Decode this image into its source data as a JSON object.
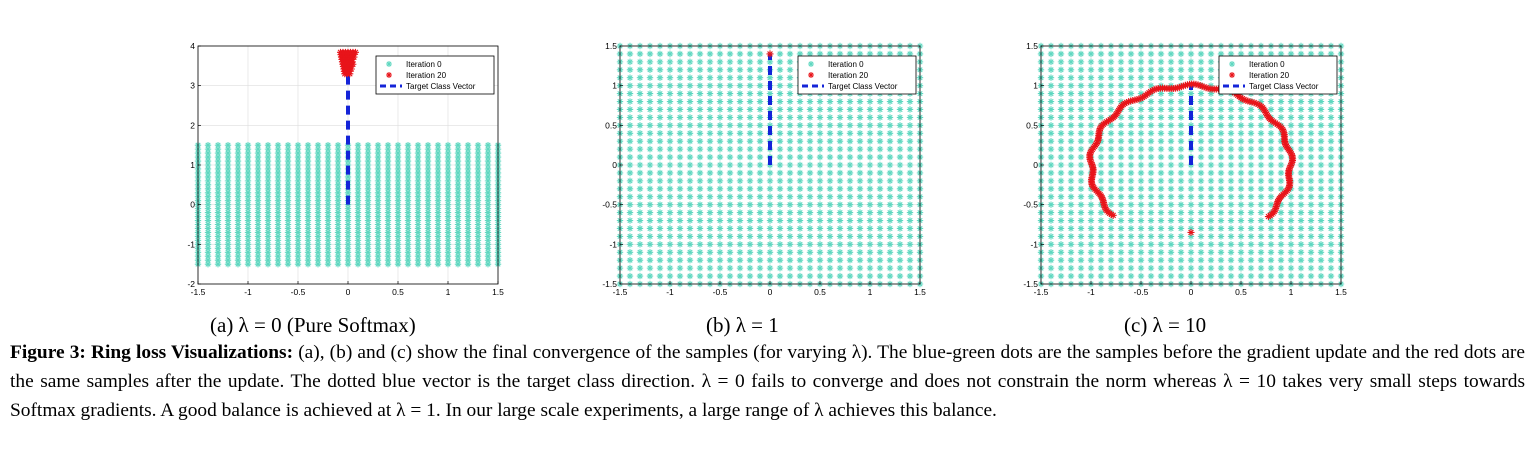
{
  "figure": {
    "caption_label": "Figure 3:",
    "caption_title": "Ring loss Visualizations:",
    "caption_text": "(a), (b) and (c) show the final convergence of the samples (for varying λ). The blue-green dots are the samples before the gradient update and the red dots are the same samples after the update. The dotted blue vector is the target class direction. λ = 0 fails to converge and does not constrain the norm whereas λ = 10 takes very small steps towards Softmax gradients. A good balance is achieved at λ = 1. In our large scale experiments, a large range of λ achieves this balance."
  },
  "colors": {
    "iteration0": "#5fd7c0",
    "iteration20": "#e8141a",
    "target": "#1424d8",
    "grid": "#dddddd"
  },
  "chart_data": [
    {
      "type": "scatter",
      "subcaption": "(a) λ = 0 (Pure Softmax)",
      "xlim": [
        -1.5,
        1.5
      ],
      "ylim": [
        -2,
        4
      ],
      "xticks": [
        "-1.5",
        "-1",
        "-0.5",
        "0",
        "0.5",
        "1",
        "1.5"
      ],
      "yticks": [
        "-2",
        "-1",
        "0",
        "1",
        "2",
        "3",
        "4"
      ],
      "grid": true,
      "legend_position": "top-right",
      "legend": [
        "Iteration 0",
        "Iteration 20",
        "Target Class Vector"
      ],
      "series": [
        {
          "name": "Iteration 0",
          "grid_x": [
            -1.5,
            1.5
          ],
          "grid_y": [
            -1.5,
            1.5
          ]
        },
        {
          "name": "Iteration 20",
          "shape": "cluster",
          "x_range": [
            -0.08,
            0.08
          ],
          "y_range": [
            3.3,
            3.9
          ]
        },
        {
          "name": "Target Class Vector",
          "x": [
            0,
            0
          ],
          "y": [
            0,
            3.7
          ]
        }
      ]
    },
    {
      "type": "scatter",
      "subcaption": "(b) λ = 1",
      "xlim": [
        -1.5,
        1.5
      ],
      "ylim": [
        -1.5,
        1.5
      ],
      "xticks": [
        "-1.5",
        "-1",
        "-0.5",
        "0",
        "0.5",
        "1",
        "1.5"
      ],
      "yticks": [
        "-1.5",
        "-1",
        "-0.5",
        "0",
        "0.5",
        "1",
        "1.5"
      ],
      "grid": true,
      "legend_position": "top-right",
      "legend": [
        "Iteration 0",
        "Iteration 20",
        "Target Class Vector"
      ],
      "series": [
        {
          "name": "Iteration 0",
          "grid_x": [
            -1.5,
            1.5
          ],
          "grid_y": [
            -1.5,
            1.5
          ]
        },
        {
          "name": "Iteration 20",
          "shape": "point",
          "x": [
            0
          ],
          "y": [
            1.4
          ]
        },
        {
          "name": "Target Class Vector",
          "x": [
            0,
            0
          ],
          "y": [
            0,
            1.4
          ]
        }
      ]
    },
    {
      "type": "scatter",
      "subcaption": "(c) λ = 10",
      "xlim": [
        -1.5,
        1.5
      ],
      "ylim": [
        -1.5,
        1.5
      ],
      "xticks": [
        "-1.5",
        "-1",
        "-0.5",
        "0",
        "0.5",
        "1",
        "1.5"
      ],
      "yticks": [
        "-1.5",
        "-1",
        "-0.5",
        "0",
        "0.5",
        "1",
        "1.5"
      ],
      "grid": true,
      "legend_position": "top-right",
      "legend": [
        "Iteration 0",
        "Iteration 20",
        "Target Class Vector"
      ],
      "series": [
        {
          "name": "Iteration 0",
          "grid_x": [
            -1.5,
            1.5
          ],
          "grid_y": [
            -1.5,
            1.5
          ]
        },
        {
          "name": "Iteration 20",
          "shape": "arc",
          "radius": 1.0,
          "angle_range_deg": [
            -40,
            220
          ],
          "extra_point": [
            0,
            -0.85
          ]
        },
        {
          "name": "Target Class Vector",
          "x": [
            0,
            0
          ],
          "y": [
            0,
            1.0
          ]
        }
      ]
    }
  ]
}
